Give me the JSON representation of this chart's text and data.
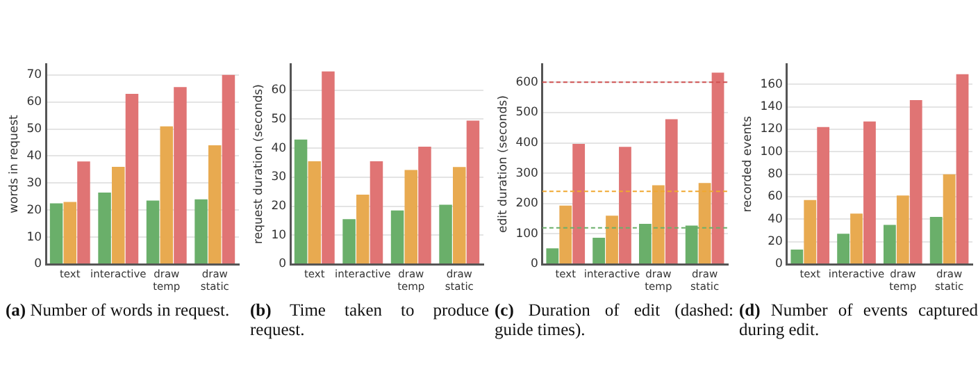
{
  "chart_data": [
    {
      "type": "bar",
      "ylabel": "words in request",
      "categories": [
        "text",
        "interactive",
        "draw temp",
        "draw static"
      ],
      "series": [
        {
          "color": "#6aaf6a",
          "values": [
            22.5,
            26.5,
            23.5,
            24
          ]
        },
        {
          "color": "#e8aa50",
          "values": [
            23,
            36,
            51,
            44
          ]
        },
        {
          "color": "#e07474",
          "values": [
            38,
            63,
            65.5,
            70
          ]
        }
      ],
      "ylim": [
        0,
        74
      ],
      "yticks": [
        0,
        10,
        20,
        30,
        40,
        50,
        60,
        70
      ],
      "grid": "y",
      "annotations": [
        "(a) Number of words in request."
      ]
    },
    {
      "type": "bar",
      "ylabel": "request duration (seconds)",
      "categories": [
        "text",
        "interactive",
        "draw temp",
        "draw static"
      ],
      "series": [
        {
          "color": "#6aaf6a",
          "values": [
            43,
            15.5,
            18.5,
            20.5
          ]
        },
        {
          "color": "#e8aa50",
          "values": [
            35.5,
            24,
            32.5,
            33.5
          ]
        },
        {
          "color": "#e07474",
          "values": [
            66.5,
            35.5,
            40.5,
            49.5
          ]
        }
      ],
      "ylim": [
        0,
        69
      ],
      "yticks": [
        0,
        10,
        20,
        30,
        40,
        50,
        60
      ],
      "grid": "y",
      "annotations": [
        "(b) Time taken to produce request."
      ]
    },
    {
      "type": "bar",
      "ylabel": "edit duration (seconds)",
      "categories": [
        "text",
        "interactive",
        "draw temp",
        "draw static"
      ],
      "series": [
        {
          "color": "#6aaf6a",
          "values": [
            52,
            87,
            133,
            127
          ]
        },
        {
          "color": "#e8aa50",
          "values": [
            193,
            160,
            260,
            268
          ]
        },
        {
          "color": "#e07474",
          "values": [
            397,
            387,
            478,
            632
          ]
        }
      ],
      "ylim": [
        0,
        660
      ],
      "yticks": [
        0,
        100,
        200,
        300,
        400,
        500,
        600
      ],
      "grid": "y",
      "ref_lines": [
        {
          "axis": "y",
          "value": 600,
          "color": "#d05050",
          "line_style": "dashed"
        },
        {
          "axis": "y",
          "value": 240,
          "color": "#f0a830",
          "line_style": "dashed"
        },
        {
          "axis": "y",
          "value": 120,
          "color": "#6aaf6a",
          "line_style": "dashed"
        }
      ],
      "annotations": [
        "(c) Duration of edit (dashed: guide times)."
      ]
    },
    {
      "type": "bar",
      "ylabel": "recorded events",
      "categories": [
        "text",
        "interactive",
        "draw temp",
        "draw static"
      ],
      "series": [
        {
          "color": "#6aaf6a",
          "values": [
            13,
            27,
            35,
            42
          ]
        },
        {
          "color": "#e8aa50",
          "values": [
            57,
            45,
            61,
            80
          ]
        },
        {
          "color": "#e07474",
          "values": [
            122,
            127,
            146,
            169
          ]
        }
      ],
      "ylim": [
        0,
        178
      ],
      "yticks": [
        0,
        20,
        40,
        60,
        80,
        100,
        120,
        140,
        160
      ],
      "grid": "y",
      "annotations": [
        "(d) Number of events captured during edit."
      ]
    }
  ]
}
